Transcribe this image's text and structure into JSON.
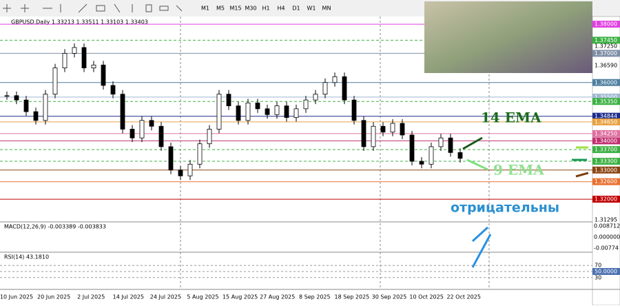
{
  "toolbar": {
    "timeframes": [
      "M1",
      "M5",
      "M15",
      "M30",
      "H1",
      "H4",
      "D1",
      "W1",
      "MN"
    ]
  },
  "chart": {
    "type": "candlestick",
    "symbol_info": "GBPUSD,Daily  1.33213 1.33511 1.33103 1.33403",
    "ylim": [
      1.3127,
      1.3812
    ],
    "closes": [
      1.3555,
      1.354,
      1.35,
      1.347,
      1.356,
      1.365,
      1.37,
      1.372,
      1.365,
      1.366,
      1.359,
      1.356,
      1.344,
      1.341,
      1.347,
      1.345,
      1.338,
      1.33,
      1.328,
      1.332,
      1.339,
      1.344,
      1.356,
      1.352,
      1.347,
      1.353,
      1.351,
      1.349,
      1.352,
      1.348,
      1.351,
      1.354,
      1.356,
      1.36,
      1.362,
      1.354,
      1.347,
      1.338,
      1.345,
      1.343,
      1.346,
      1.342,
      1.333,
      1.332,
      1.338,
      1.341,
      1.336,
      1.334
    ],
    "levels": [
      {
        "value": 1.38,
        "label": "1.38000",
        "color": "#e040e0",
        "boxed": true
      },
      {
        "value": 1.3745,
        "label": "1.37450",
        "color": "#3cb043",
        "boxed": true
      },
      {
        "value": 1.3725,
        "label": "1.37250",
        "color": "none",
        "boxed": false
      },
      {
        "value": 1.37,
        "label": "1.37000",
        "color": "#7f8fa6",
        "boxed": true
      },
      {
        "value": 1.3659,
        "label": "1.36590",
        "color": "none",
        "boxed": false
      },
      {
        "value": 1.36,
        "label": "1.36000",
        "color": "#4f7fa0",
        "boxed": true
      },
      {
        "value": 1.355,
        "label": "1.35500",
        "color": "#9fb8d0",
        "boxed": true
      },
      {
        "value": 1.3535,
        "label": "1.35350",
        "color": "#3cb043",
        "boxed": true
      },
      {
        "value": 1.34844,
        "label": "1.34844",
        "color": "#1c2c8c",
        "boxed": true
      },
      {
        "value": 1.3465,
        "label": "1.34650",
        "color": "#e8a040",
        "boxed": true
      },
      {
        "value": 1.3425,
        "label": "1.34250",
        "color": "#e070a0",
        "boxed": true
      },
      {
        "value": 1.34,
        "label": "1.34000",
        "color": "#c03070",
        "boxed": true
      },
      {
        "value": 1.337,
        "label": "1.33700",
        "color": "#3cb043",
        "boxed": true
      },
      {
        "value": 1.333,
        "label": "1.33300",
        "color": "#3cb043",
        "boxed": true
      },
      {
        "value": 1.33,
        "label": "1.33000",
        "color": "#8b4513",
        "boxed": true
      },
      {
        "value": 1.326,
        "label": "1.32600",
        "color": "#e87030",
        "boxed": true
      },
      {
        "value": 1.32,
        "label": "1.32000",
        "color": "#c00000",
        "boxed": true
      },
      {
        "value": 1.31295,
        "label": "1.31295",
        "color": "none",
        "boxed": false
      }
    ],
    "dates": [
      "10 Jun 2025",
      "20 Jun 2025",
      "2 Jul 2025",
      "14 Jul 2025",
      "24 Jul 2025",
      "5 Aug 2025",
      "15 Aug 2025",
      "27 Aug 2025",
      "8 Sep 2025",
      "18 Sep 2025",
      "30 Sep 2025",
      "10 Oct 2025",
      "22 Oct 2025"
    ],
    "annotations": [
      "14 EMA",
      "9 EMA",
      "отрицательны"
    ]
  },
  "macd": {
    "label": "MACD(12,26,9) -0.003389 -0.003833",
    "ticks": [
      "0.008712",
      "0.000000",
      "-0.00774"
    ]
  },
  "rsi": {
    "label": "RSI(14) 43.1810",
    "ticks": [
      70,
      {
        "value": 50,
        "label": "50.0000"
      },
      30
    ]
  }
}
